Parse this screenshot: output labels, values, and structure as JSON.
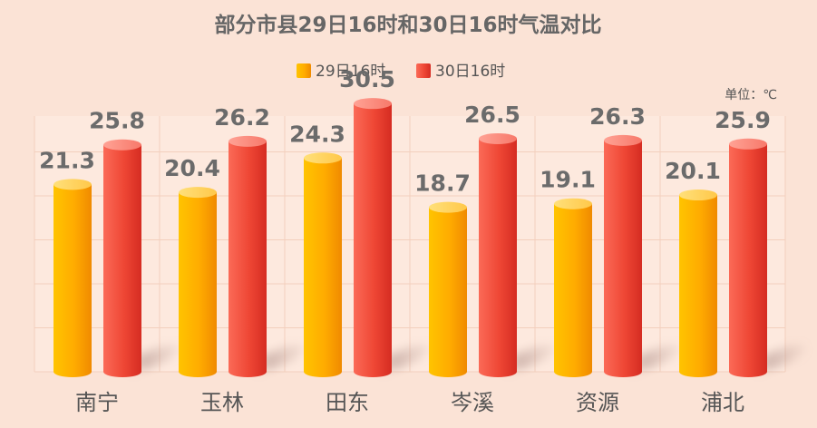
{
  "colors": {
    "background": "#fbe3d6",
    "series1": "#ffa500",
    "series2": "#e8382a",
    "title": "#666666",
    "grid": "#f1d4c5"
  },
  "chart_data": {
    "type": "bar",
    "title": "部分市县29日16时和30日16时气温对比",
    "unit": "单位：℃",
    "categories": [
      "南宁",
      "玉林",
      "田东",
      "岑溪",
      "资源",
      "浦北"
    ],
    "series": [
      {
        "name": "29日16时",
        "values": [
          21.3,
          20.4,
          24.3,
          18.7,
          19.1,
          20.1
        ]
      },
      {
        "name": "30日16时",
        "values": [
          25.8,
          26.2,
          30.5,
          26.5,
          26.3,
          25.9
        ]
      }
    ],
    "ylim": [
      0,
      35
    ],
    "grid": true,
    "legend": "top-center",
    "style": "3d-cylinder"
  }
}
